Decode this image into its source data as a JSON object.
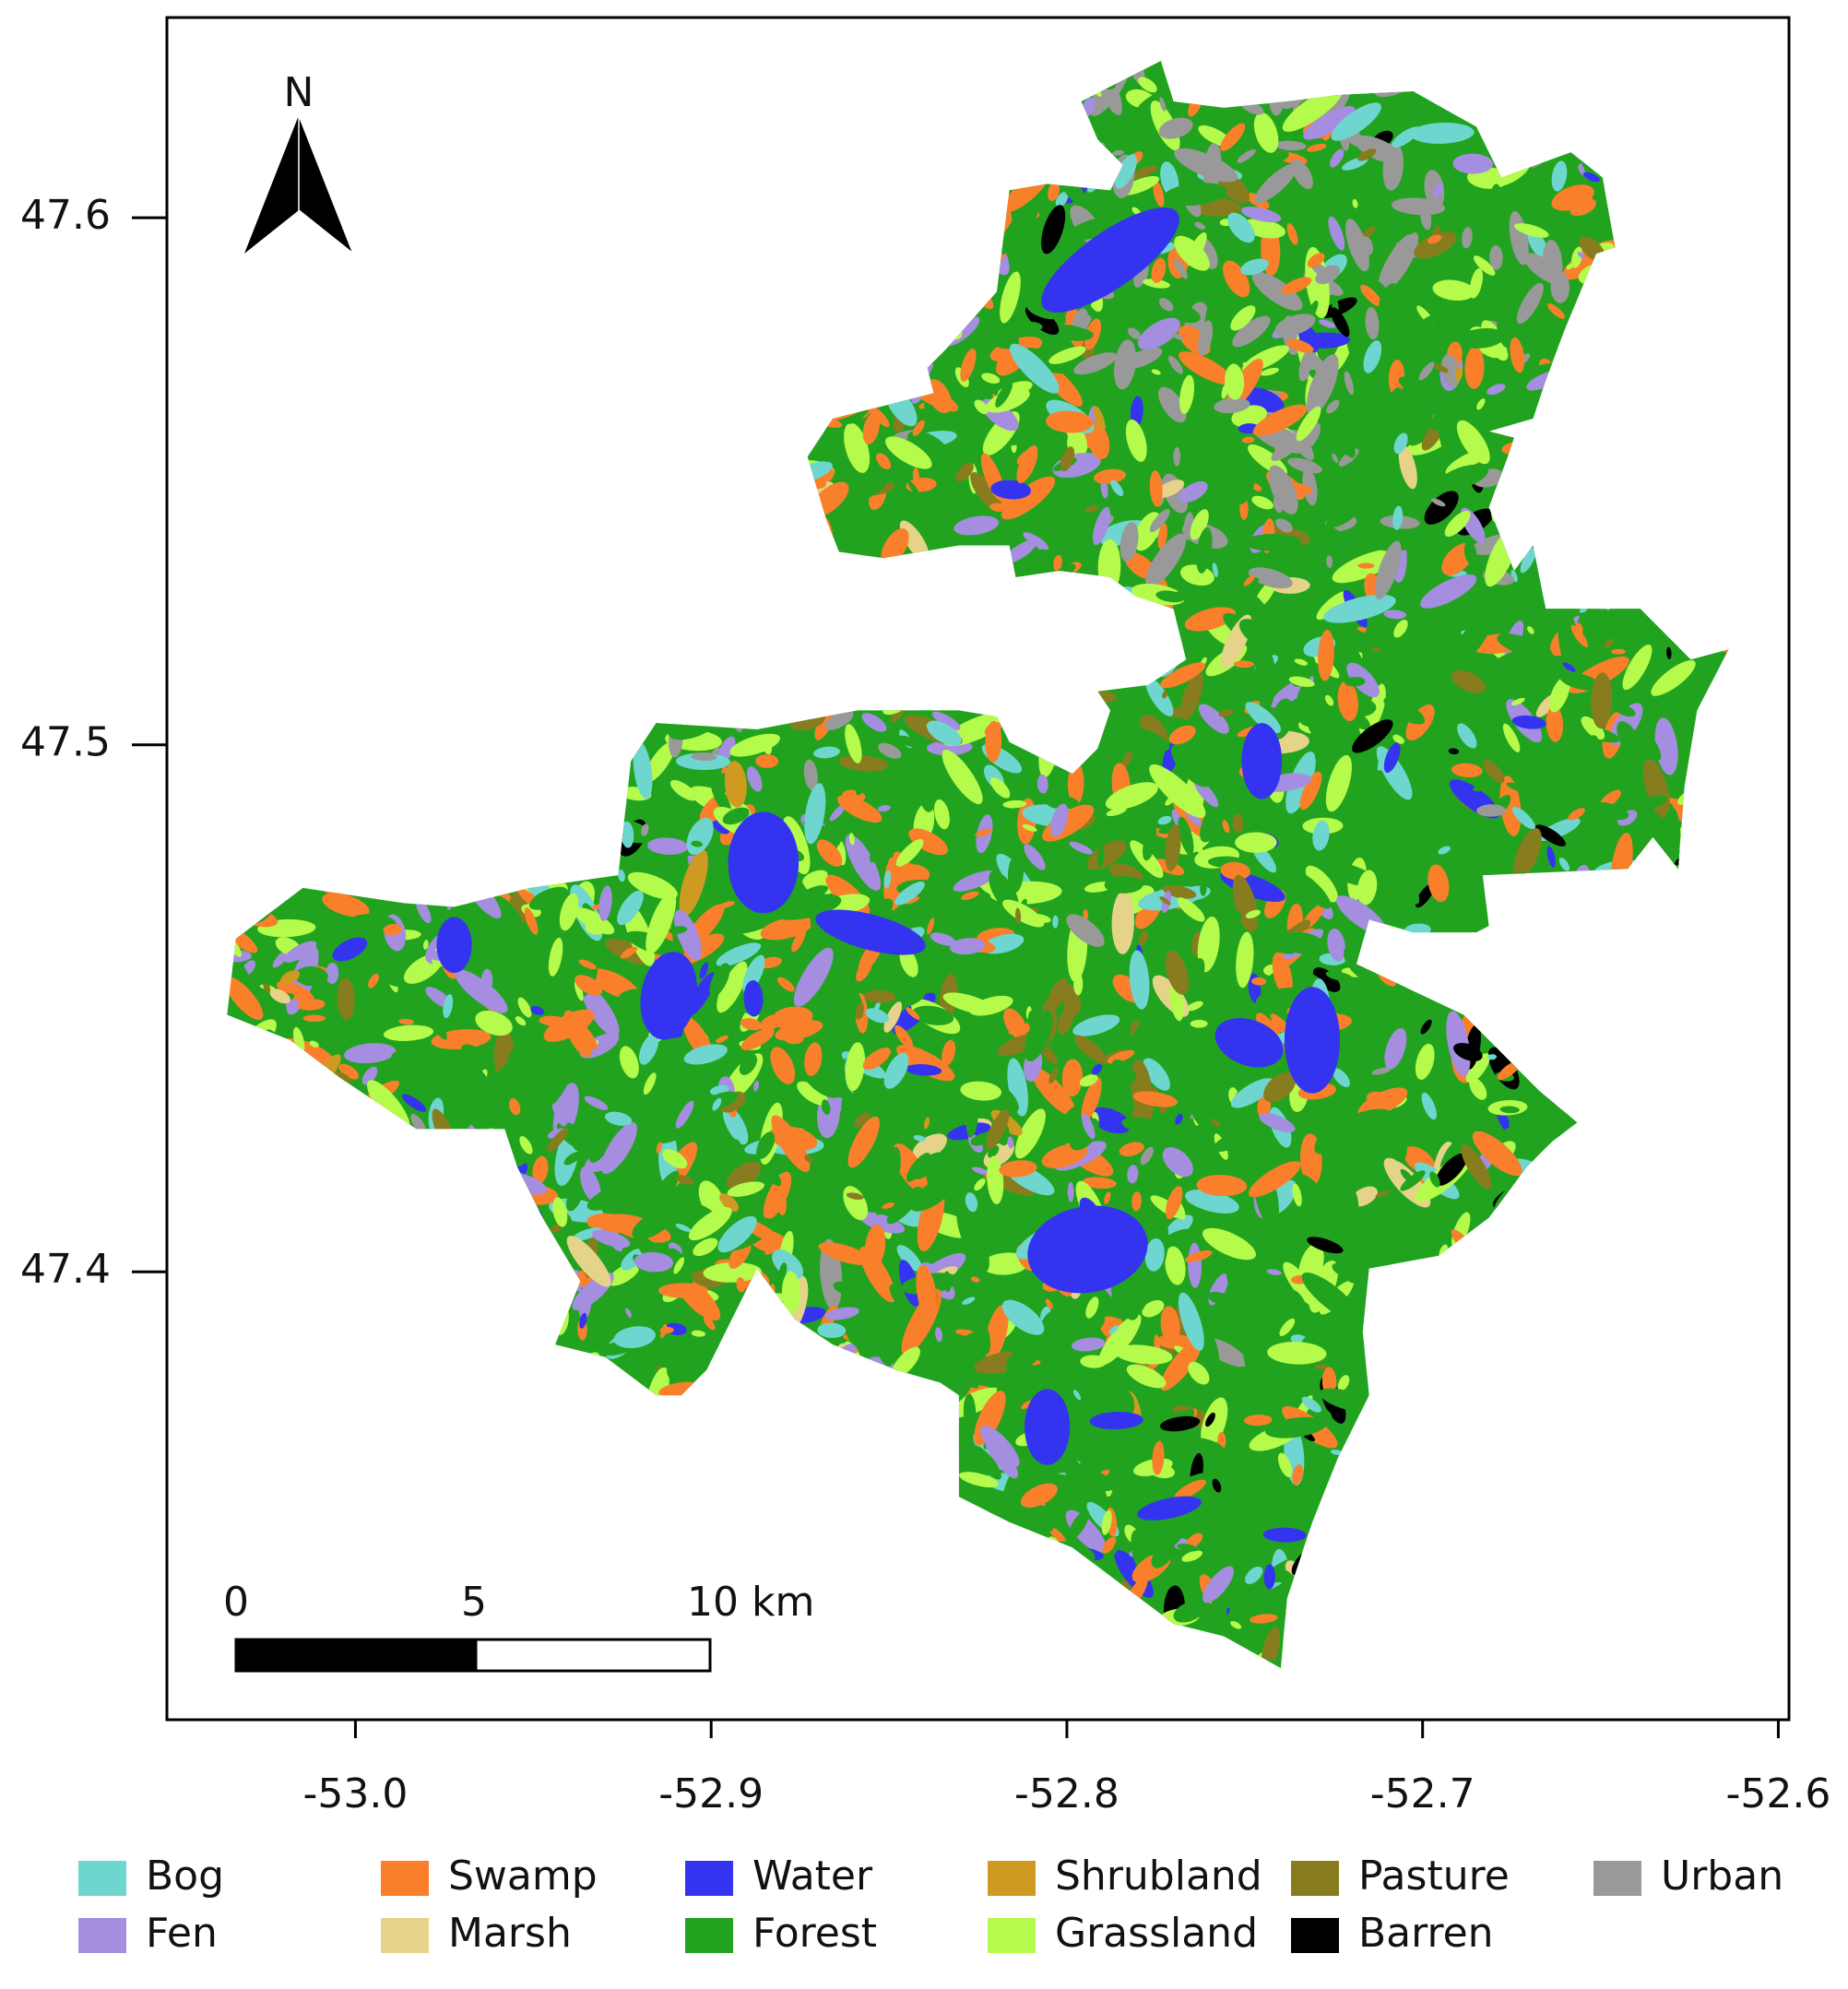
{
  "map": {
    "north_label": "N",
    "xlim": [
      -53.053,
      -52.597
    ],
    "ylim": [
      47.315,
      47.638
    ],
    "xticks": [
      {
        "value": -53.0,
        "label": "-53.0"
      },
      -52.9,
      -52.8,
      -52.7,
      -52.6
    ],
    "yticks": [
      47.6,
      47.5,
      47.4
    ],
    "scale_bar": {
      "labels": [
        "0",
        "5",
        "10 km"
      ]
    },
    "legend": [
      {
        "label": "Bog",
        "color": "#6fd6cf"
      },
      {
        "label": "Fen",
        "color": "#a58de0"
      },
      {
        "label": "Swamp",
        "color": "#f97f2a"
      },
      {
        "label": "Marsh",
        "color": "#e6d38a"
      },
      {
        "label": "Water",
        "color": "#3434f0"
      },
      {
        "label": "Forest",
        "color": "#22a31f"
      },
      {
        "label": "Shrubland",
        "color": "#cf9a22"
      },
      {
        "label": "Grassland",
        "color": "#b5fb4b"
      },
      {
        "label": "Pasture",
        "color": "#877d1e"
      },
      {
        "label": "Barren",
        "color": "#000000"
      },
      {
        "label": "Urban",
        "color": "#999999"
      }
    ]
  }
}
